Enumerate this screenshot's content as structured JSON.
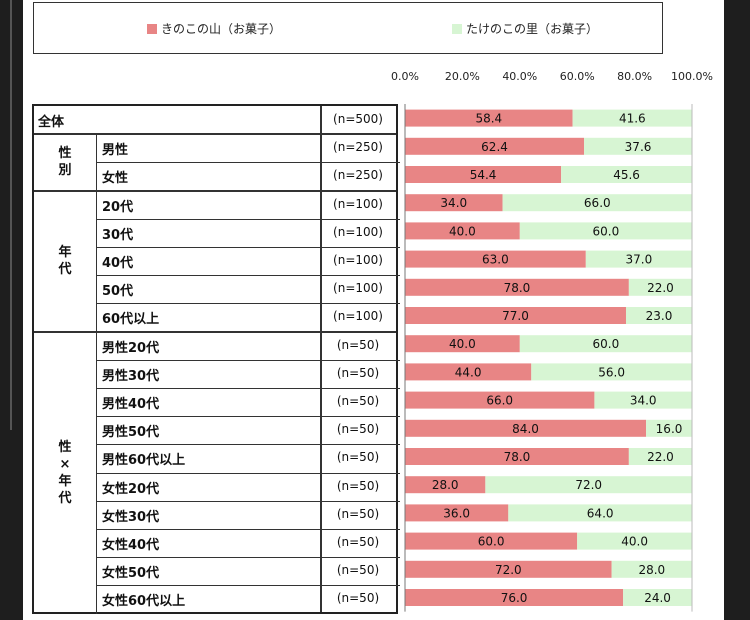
{
  "legend": {
    "items": [
      {
        "label": "きのこの山（お菓子）",
        "color": "#e88585"
      },
      {
        "label": "たけのこの里（お菓子）",
        "color": "#d7f5d3"
      }
    ]
  },
  "axis": {
    "ticks": [
      "0.0%",
      "20.0%",
      "40.0%",
      "60.0%",
      "80.0%",
      "100.0%"
    ]
  },
  "groups": [
    {
      "label": "全体",
      "rows": [
        0
      ]
    },
    {
      "label": "性別",
      "rows": [
        1,
        2
      ]
    },
    {
      "label": "年代",
      "rows": [
        3,
        4,
        5,
        6,
        7
      ]
    },
    {
      "label": "性×年代",
      "rows": [
        8,
        9,
        10,
        11,
        12,
        13,
        14,
        15,
        16,
        17
      ]
    }
  ],
  "chart_data": {
    "type": "bar",
    "stacked": true,
    "orientation": "horizontal",
    "xlim": [
      0,
      100
    ],
    "x_ticks": [
      "0.0%",
      "20.0%",
      "40.0%",
      "60.0%",
      "80.0%",
      "100.0%"
    ],
    "legend_position": "top",
    "categories": [
      "全体",
      "男性",
      "女性",
      "20代",
      "30代",
      "40代",
      "50代",
      "60代以上",
      "男性20代",
      "男性30代",
      "男性40代",
      "男性50代",
      "男性60代以上",
      "女性20代",
      "女性30代",
      "女性40代",
      "女性50代",
      "女性60代以上"
    ],
    "n_labels": [
      "(n=500)",
      "(n=250)",
      "(n=250)",
      "(n=100)",
      "(n=100)",
      "(n=100)",
      "(n=100)",
      "(n=100)",
      "(n=50)",
      "(n=50)",
      "(n=50)",
      "(n=50)",
      "(n=50)",
      "(n=50)",
      "(n=50)",
      "(n=50)",
      "(n=50)",
      "(n=50)"
    ],
    "series": [
      {
        "name": "きのこの山（お菓子）",
        "color": "#e88585",
        "values": [
          58.4,
          62.4,
          54.4,
          34.0,
          40.0,
          63.0,
          78.0,
          77.0,
          40.0,
          44.0,
          66.0,
          84.0,
          78.0,
          28.0,
          36.0,
          60.0,
          72.0,
          76.0
        ],
        "labels": [
          "58.4",
          "62.4",
          "54.4",
          "34.0",
          "40.0",
          "63.0",
          "78.0",
          "77.0",
          "40.0",
          "44.0",
          "66.0",
          "84.0",
          "78.0",
          "28.0",
          "36.0",
          "60.0",
          "72.0",
          "76.0"
        ]
      },
      {
        "name": "たけのこの里（お菓子）",
        "color": "#d7f5d3",
        "values": [
          41.6,
          37.6,
          45.6,
          66.0,
          60.0,
          37.0,
          22.0,
          23.0,
          60.0,
          56.0,
          34.0,
          16.0,
          22.0,
          72.0,
          64.0,
          40.0,
          28.0,
          24.0
        ],
        "labels": [
          "41.6",
          "37.6",
          "45.6",
          "66.0",
          "60.0",
          "37.0",
          "22.0",
          "23.0",
          "60.0",
          "56.0",
          "34.0",
          "16.0",
          "22.0",
          "72.0",
          "64.0",
          "40.0",
          "28.0",
          "24.0"
        ]
      }
    ]
  }
}
